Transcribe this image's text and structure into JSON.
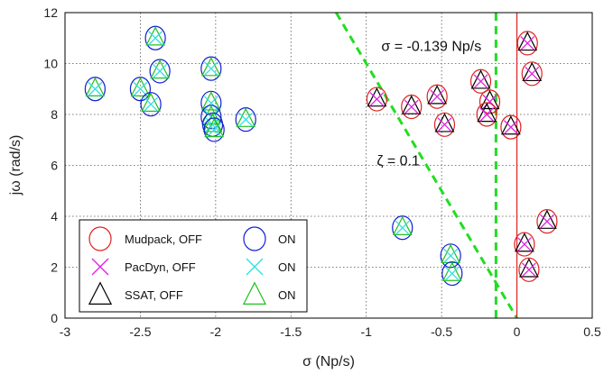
{
  "chart_data": {
    "type": "scatter",
    "xlabel": "σ (Np/s)",
    "ylabel": "jω (rad/s)",
    "xlim": [
      -3,
      0.5
    ],
    "ylim": [
      0,
      12
    ],
    "x_ticks": [
      -3,
      -2.5,
      -2,
      -1.5,
      -1,
      -0.5,
      0,
      0.5
    ],
    "y_ticks": [
      0,
      2,
      4,
      6,
      8,
      10,
      12
    ],
    "x_tick_labels": [
      "-3",
      "-2.5",
      "-2",
      "-1.5",
      "-1",
      "-0.5",
      "0",
      "0.5"
    ],
    "y_tick_labels": [
      "0",
      "2",
      "4",
      "6",
      "8",
      "10",
      "12"
    ],
    "grid": true,
    "legend_placement": "bottom-left",
    "annotations": [
      {
        "id": "sigma",
        "text": "σ = -0.139 Np/s",
        "x": -0.9,
        "y": 10.5
      },
      {
        "id": "zeta",
        "text": "ζ = 0.1",
        "x": -0.93,
        "y": 6.0
      }
    ],
    "reference_lines": [
      {
        "name": "sigma_line",
        "x": -0.139,
        "color": "#22dd22",
        "style": "dashed"
      },
      {
        "name": "zeta_line",
        "points": [
          [
            -1.2,
            12.0
          ],
          [
            0,
            0
          ]
        ],
        "color": "#22dd22",
        "style": "dashed"
      },
      {
        "name": "imag_axis",
        "x": 0,
        "color": "#dd2222",
        "style": "solid"
      }
    ],
    "legend": [
      {
        "label": "Mudpack, OFF",
        "symbol": "circle",
        "color": "#e02020"
      },
      {
        "label": "ON",
        "symbol": "circle",
        "color": "#1020d0"
      },
      {
        "label": "PacDyn, OFF",
        "symbol": "cross",
        "color": "#e020e0"
      },
      {
        "label": "ON",
        "symbol": "cross",
        "color": "#30e0e0"
      },
      {
        "label": "SSAT, OFF",
        "symbol": "triangle",
        "color": "#000000"
      },
      {
        "label": "ON",
        "symbol": "triangle",
        "color": "#20c020"
      }
    ],
    "series_off": {
      "colors": {
        "circle": "#e02020",
        "cross": "#e020e0",
        "triangle": "#000000"
      },
      "points": [
        [
          -0.93,
          8.6
        ],
        [
          -0.7,
          8.3
        ],
        [
          -0.53,
          8.7
        ],
        [
          -0.48,
          7.6
        ],
        [
          -0.24,
          9.3
        ],
        [
          -0.18,
          8.5
        ],
        [
          -0.2,
          8.0
        ],
        [
          -0.04,
          7.5
        ],
        [
          0.07,
          10.8
        ],
        [
          0.1,
          9.6
        ],
        [
          0.2,
          3.8
        ],
        [
          0.05,
          2.9
        ],
        [
          0.08,
          1.9
        ]
      ]
    },
    "series_on": {
      "colors": {
        "circle": "#1020d0",
        "cross": "#30e0e0",
        "triangle": "#20c020"
      },
      "points": [
        [
          -2.8,
          9.0
        ],
        [
          -2.5,
          9.0
        ],
        [
          -2.43,
          8.4
        ],
        [
          -2.4,
          11.0
        ],
        [
          -2.37,
          9.7
        ],
        [
          -2.03,
          9.8
        ],
        [
          -2.03,
          8.45
        ],
        [
          -2.03,
          7.9
        ],
        [
          -2.02,
          7.6
        ],
        [
          -2.01,
          7.4
        ],
        [
          -1.8,
          7.8
        ],
        [
          -0.76,
          3.55
        ],
        [
          -0.44,
          2.45
        ],
        [
          -0.43,
          1.75
        ]
      ]
    }
  }
}
